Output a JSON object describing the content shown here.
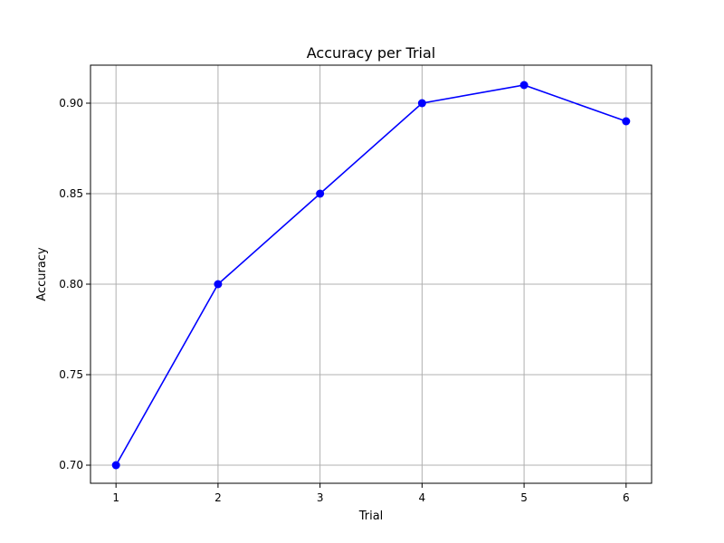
{
  "chart_data": {
    "type": "line",
    "title": "Accuracy per Trial",
    "xlabel": "Trial",
    "ylabel": "Accuracy",
    "x": [
      1,
      2,
      3,
      4,
      5,
      6
    ],
    "values": [
      0.7,
      0.8,
      0.85,
      0.9,
      0.91,
      0.89
    ],
    "xlim": [
      0.75,
      6.25
    ],
    "ylim": [
      0.69,
      0.921
    ],
    "x_ticks": [
      1,
      2,
      3,
      4,
      5,
      6
    ],
    "x_tick_labels": [
      "1",
      "2",
      "3",
      "4",
      "5",
      "6"
    ],
    "y_ticks": [
      0.7,
      0.75,
      0.8,
      0.85,
      0.9
    ],
    "y_tick_labels": [
      "0.70",
      "0.75",
      "0.80",
      "0.85",
      "0.90"
    ],
    "grid": true,
    "line_color": "#0000ff",
    "marker": "circle"
  }
}
